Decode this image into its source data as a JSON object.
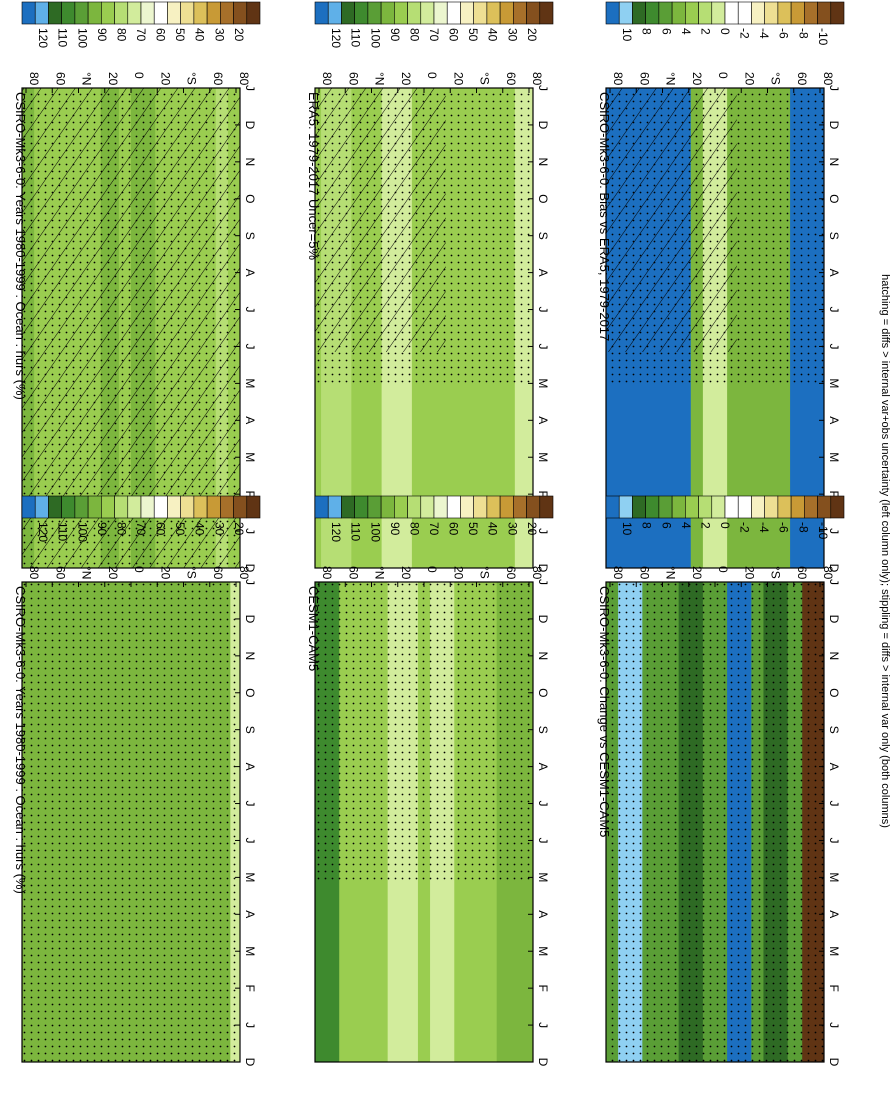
{
  "figure": {
    "footnote": "hatching = diffs > internal var+obs uncertainty (left column only); stippling = diffs > internal var only (both columns)"
  },
  "palettes": {
    "abs": [
      "#1c6fc0",
      "#5fb0e8",
      "#2e6a24",
      "#3e8a2e",
      "#5a9e36",
      "#7cb63e",
      "#9acd50",
      "#b6de74",
      "#d2ec9c",
      "#ecf6cf",
      "#ffffff",
      "#f7f1c2",
      "#eedf93",
      "#dcc05a",
      "#c89a36",
      "#a7702a",
      "#84501e",
      "#603414"
    ],
    "diff": [
      "#1c6fc0",
      "#8fd0f2",
      "#2e6a24",
      "#3e8a2e",
      "#5a9e36",
      "#7cb63e",
      "#9acd50",
      "#b6de74",
      "#d2ec9c",
      "#ffffff",
      "#ffffff",
      "#f7f1c2",
      "#eedf93",
      "#dcc05a",
      "#c89a36",
      "#a7702a",
      "#84501e",
      "#603414"
    ]
  },
  "chart_data": [
    {
      "type": "heatmap",
      "title": "CSIRO-Mk3-6-0: Years 1980-1999 : Ocean : hurs (%)",
      "x_ticks": [
        "D",
        "J",
        "F",
        "M",
        "A",
        "M",
        "J",
        "J",
        "A",
        "S",
        "O",
        "N",
        "D",
        "J"
      ],
      "y_ticks": [
        "80",
        "60",
        "°N",
        "20",
        "0",
        "20",
        "°S",
        "60",
        "80"
      ],
      "colorbar": {
        "ticks": [
          "120",
          "110",
          "100",
          "90",
          "80",
          "70",
          "60",
          "50",
          "40",
          "30",
          "20"
        ],
        "palette": "abs"
      },
      "value_range": [
        20,
        120
      ],
      "field": {
        "base": 86,
        "band": [
          [
            -80,
            -70,
            80
          ],
          [
            -65,
            -50,
            83
          ],
          [
            -20,
            0,
            88
          ],
          [
            10,
            25,
            90
          ],
          [
            60,
            75,
            82
          ],
          [
            80,
            90,
            88
          ]
        ]
      },
      "hatching": "full",
      "stippling": "full"
    },
    {
      "type": "heatmap",
      "title": "CSIRO-Mk3-6-0: Years 1980-1999 : Ocean : hurs (%)",
      "x_ticks": [
        "D",
        "J",
        "F",
        "M",
        "A",
        "M",
        "J",
        "J",
        "A",
        "S",
        "O",
        "N",
        "D",
        "J"
      ],
      "y_ticks": [
        "80",
        "60",
        "°N",
        "20",
        "0",
        "20",
        "°S",
        "60",
        "80"
      ],
      "colorbar": {
        "ticks": [
          "120",
          "110",
          "100",
          "90",
          "80",
          "70",
          "60",
          "50",
          "40",
          "30",
          "20"
        ],
        "palette": "abs"
      },
      "value_range": [
        20,
        120
      ],
      "field": {
        "base": 87,
        "band": [
          [
            -90,
            -82,
            75
          ],
          [
            60,
            80,
            88
          ]
        ]
      },
      "hatching": "none",
      "stippling": "full"
    },
    {
      "type": "heatmap",
      "title": "ERA5: 1979-2017 Uncer=5%",
      "x_ticks": [
        "D",
        "J",
        "F",
        "M",
        "A",
        "M",
        "J",
        "J",
        "A",
        "S",
        "O",
        "N",
        "D",
        "J"
      ],
      "y_ticks": [
        "80",
        "60",
        "°N",
        "20",
        "0",
        "20",
        "°S",
        "60",
        "80"
      ],
      "colorbar": {
        "ticks": [
          "120",
          "110",
          "100",
          "90",
          "80",
          "70",
          "60",
          "50",
          "40",
          "30",
          "20"
        ],
        "palette": "abs"
      },
      "value_range": [
        20,
        120
      ],
      "field": {
        "base": 82,
        "band": [
          [
            -90,
            -75,
            72
          ],
          [
            -55,
            -40,
            84
          ],
          [
            10,
            35,
            74
          ],
          [
            60,
            85,
            80
          ]
        ]
      },
      "hatching": "partial",
      "stippling": "partial"
    },
    {
      "type": "heatmap",
      "title": "CESM1-CAM5",
      "x_ticks": [
        "D",
        "J",
        "F",
        "M",
        "A",
        "M",
        "J",
        "J",
        "A",
        "S",
        "O",
        "N",
        "D",
        "J"
      ],
      "y_ticks": [
        "80",
        "60",
        "°N",
        "20",
        "0",
        "20",
        "°S",
        "60",
        "80"
      ],
      "colorbar": {
        "ticks": [
          "120",
          "110",
          "100",
          "90",
          "80",
          "70",
          "60",
          "50",
          "40",
          "30",
          "20"
        ],
        "palette": "abs"
      },
      "value_range": [
        20,
        120
      ],
      "field": {
        "base": 84,
        "band": [
          [
            -90,
            -60,
            92
          ],
          [
            -25,
            -5,
            72
          ],
          [
            5,
            30,
            74
          ],
          [
            70,
            90,
            98
          ]
        ]
      },
      "hatching": "none",
      "stippling": "partial"
    },
    {
      "type": "heatmap",
      "title": "CSIRO-Mk3-6-0: Bias vs ERA5; 1979-2017",
      "x_ticks": [
        "D",
        "J",
        "F",
        "M",
        "A",
        "M",
        "J",
        "J",
        "A",
        "S",
        "O",
        "N",
        "D",
        "J"
      ],
      "y_ticks": [
        "80",
        "60",
        "°N",
        "20",
        "0",
        "20",
        "°S",
        "60",
        "80"
      ],
      "colorbar": {
        "ticks": [
          "10",
          "8",
          "6",
          "4",
          "2",
          "0",
          "-2",
          "-4",
          "-6",
          "-8",
          "-10"
        ],
        "palette": "diff"
      },
      "value_range": [
        -10,
        10
      ],
      "field": {
        "base": 4,
        "band": [
          [
            -90,
            -62,
            11
          ],
          [
            -10,
            10,
            1
          ],
          [
            20,
            90,
            11
          ]
        ]
      },
      "hatching": "partial",
      "stippling": "partial"
    },
    {
      "type": "heatmap",
      "title": "CSIRO-Mk3-6-0: Change vs CESM1-CAM5",
      "x_ticks": [
        "D",
        "J",
        "F",
        "M",
        "A",
        "M",
        "J",
        "J",
        "A",
        "S",
        "O",
        "N",
        "D",
        "J"
      ],
      "y_ticks": [
        "80",
        "60",
        "°N",
        "20",
        "0",
        "20",
        "°S",
        "60",
        "80"
      ],
      "colorbar": {
        "ticks": [
          "10",
          "8",
          "6",
          "4",
          "2",
          "0",
          "-2",
          "-4",
          "-6",
          "-8",
          "-10"
        ],
        "palette": "diff"
      },
      "value_range": [
        -10,
        10
      ],
      "field": {
        "base": 5,
        "band": [
          [
            -90,
            -72,
            -10
          ],
          [
            -60,
            -40,
            7
          ],
          [
            -30,
            -10,
            9
          ],
          [
            10,
            30,
            7
          ],
          [
            60,
            80,
            8
          ]
        ]
      },
      "hatching": "none",
      "stippling": "full"
    }
  ]
}
